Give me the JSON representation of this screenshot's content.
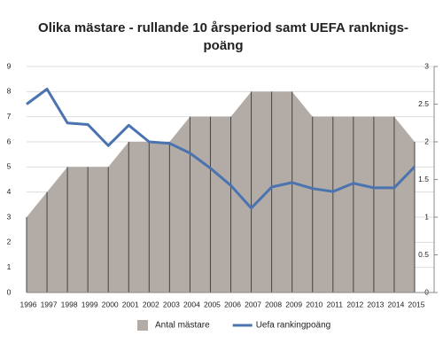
{
  "chart_data": {
    "type": "area-line",
    "title": [
      "Olika mästare - rullande 10 årsperiod samt UEFA ranknigs-",
      "poäng"
    ],
    "categories": [
      "1996",
      "1997",
      "1998",
      "1999",
      "2000",
      "2001",
      "2002",
      "2003",
      "2004",
      "2005",
      "2006",
      "2007",
      "2008",
      "2009",
      "2010",
      "2011",
      "2012",
      "2013",
      "2014",
      "2015"
    ],
    "series": [
      {
        "name": "Antal mästare",
        "color": "#b3aca6",
        "type": "area",
        "values": [
          3,
          4,
          5,
          5,
          5,
          6,
          6,
          6,
          7,
          7,
          7,
          8,
          8,
          8,
          7,
          7,
          7,
          7,
          7,
          6
        ]
      },
      {
        "name": "Uefa rankingpoäng",
        "color": "#4a73b0",
        "type": "line",
        "axis": "y2",
        "values": [
          2.5,
          2.7,
          2.25,
          2.23,
          1.95,
          2.22,
          2.0,
          1.98,
          1.85,
          1.65,
          1.42,
          1.12,
          1.4,
          1.46,
          1.38,
          1.34,
          1.45,
          1.39,
          1.39,
          1.67
        ]
      }
    ],
    "ylim": [
      0,
      9
    ],
    "yticks": [
      0,
      1,
      2,
      3,
      4,
      5,
      6,
      7,
      8,
      9
    ],
    "y2lim": [
      0,
      3
    ],
    "y2ticks": [
      0,
      0.5,
      1,
      1.5,
      2,
      2.5,
      3
    ],
    "grid": true,
    "legend": "bottom"
  }
}
